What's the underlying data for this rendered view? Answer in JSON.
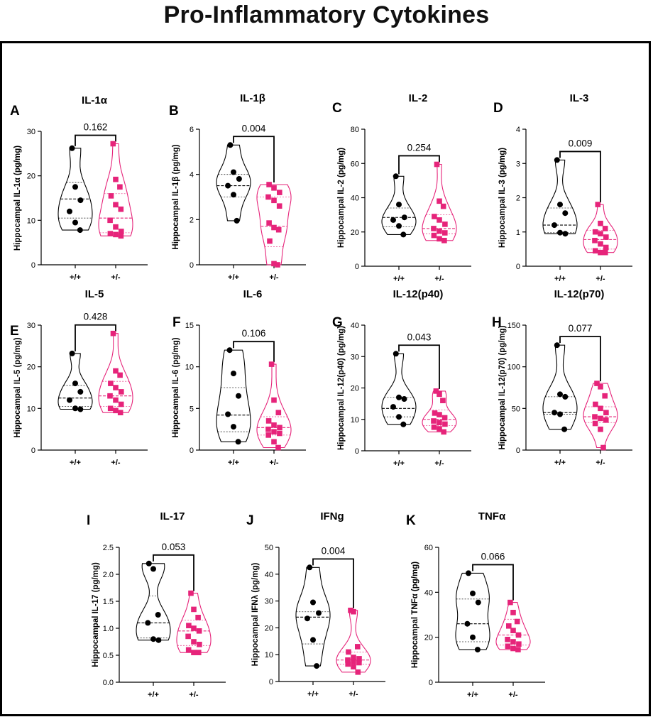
{
  "title": "Pro-Inflammatory Cytokines",
  "colors": {
    "wt": "#000000",
    "het": "#e6247a",
    "axis": "#000000"
  },
  "chart_data": [
    {
      "type": "violin",
      "letter": "A",
      "title": "IL-1α",
      "ylabel": "Hippocampal IL-1α (pg/mg)",
      "ylim": [
        0,
        30
      ],
      "yticks": [
        "0",
        "10",
        "20",
        "30"
      ],
      "categories": [
        "+/+",
        "+/-"
      ],
      "p_value": "0.162",
      "series": [
        {
          "name": "+/+",
          "values": [
            26.2,
            17.5,
            14.5,
            12.0,
            9.5,
            7.8
          ],
          "median": 14.8,
          "q1": 10.5,
          "q3": 18.5
        },
        {
          "name": "+/-",
          "values": [
            27.2,
            19.2,
            17.5,
            15.5,
            13.5,
            12.5,
            10.0,
            8.5,
            7.5,
            7.0,
            6.8,
            6.5
          ],
          "median": 10.5,
          "q1": 7.2,
          "q3": 16.0
        }
      ]
    },
    {
      "type": "violin",
      "letter": "B",
      "title": "IL-1β",
      "ylabel": "Hippocampal IL-1β (pg/mg)",
      "ylim": [
        0,
        6
      ],
      "yticks": [
        "0",
        "2",
        "4",
        "6"
      ],
      "categories": [
        "+/+",
        "+/-"
      ],
      "p_value": "0.004",
      "series": [
        {
          "name": "+/+",
          "values": [
            5.3,
            4.1,
            3.8,
            3.5,
            3.1,
            1.95
          ],
          "median": 3.5,
          "q1": 3.0,
          "q3": 4.0
        },
        {
          "name": "+/-",
          "values": [
            3.55,
            3.4,
            3.2,
            3.0,
            2.85,
            2.6,
            1.85,
            1.65,
            1.55,
            1.05,
            0.05,
            0.0
          ],
          "median": 1.7,
          "q1": 0.8,
          "q3": 3.0
        }
      ]
    },
    {
      "type": "violin",
      "letter": "C",
      "title": "IL-2",
      "ylabel": "Hippocampal IL-2 (pg/mg)",
      "ylim": [
        0,
        80
      ],
      "yticks": [
        "0",
        "20",
        "40",
        "60",
        "80"
      ],
      "categories": [
        "+/+",
        "+/-"
      ],
      "p_value": "0.254",
      "series": [
        {
          "name": "+/+",
          "values": [
            52.5,
            36.0,
            28.5,
            27.0,
            23.5,
            18.5
          ],
          "median": 28.5,
          "q1": 23.0,
          "q3": 34.0
        },
        {
          "name": "+/-",
          "values": [
            59.5,
            38.0,
            35.0,
            29.0,
            27.0,
            24.5,
            22.0,
            20.5,
            19.5,
            18.0,
            16.0,
            15.0
          ],
          "median": 22.0,
          "q1": 19.0,
          "q3": 30.0
        }
      ]
    },
    {
      "type": "violin",
      "letter": "D",
      "title": "IL-3",
      "ylabel": "Hippocampal IL-3 (pg/mg)",
      "ylim": [
        0,
        4
      ],
      "yticks": [
        "0",
        "1",
        "2",
        "3",
        "4"
      ],
      "categories": [
        "+/+",
        "+/-"
      ],
      "p_value": "0.009",
      "series": [
        {
          "name": "+/+",
          "values": [
            3.1,
            1.8,
            1.55,
            1.2,
            0.98,
            0.95
          ],
          "median": 1.2,
          "q1": 0.98,
          "q3": 1.7
        },
        {
          "name": "+/-",
          "values": [
            1.8,
            1.25,
            1.1,
            1.0,
            0.95,
            0.85,
            0.75,
            0.65,
            0.55,
            0.45,
            0.4,
            0.4
          ],
          "median": 0.78,
          "q1": 0.5,
          "q3": 1.05
        }
      ]
    },
    {
      "type": "violin",
      "letter": "E",
      "title": "IL-5",
      "ylabel": "Hippocampal IL-5 (pg/mg)",
      "ylim": [
        0,
        30
      ],
      "yticks": [
        "0",
        "10",
        "20",
        "30"
      ],
      "categories": [
        "+/+",
        "+/-"
      ],
      "p_value": "0.428",
      "series": [
        {
          "name": "+/+",
          "values": [
            23.2,
            16.0,
            14.0,
            12.0,
            10.0,
            9.8
          ],
          "median": 12.5,
          "q1": 10.5,
          "q3": 15.5
        },
        {
          "name": "+/-",
          "values": [
            28.0,
            19.0,
            18.0,
            16.0,
            15.0,
            14.0,
            13.0,
            12.0,
            11.0,
            10.0,
            9.5,
            9.0
          ],
          "median": 13.0,
          "q1": 10.5,
          "q3": 16.5
        }
      ]
    },
    {
      "type": "violin",
      "letter": "F",
      "title": "IL-6",
      "ylabel": "Hippocampal IL-6 (pg/mg)",
      "ylim": [
        0,
        15
      ],
      "yticks": [
        "0",
        "5",
        "10",
        "15"
      ],
      "categories": [
        "+/+",
        "+/-"
      ],
      "p_value": "0.106",
      "series": [
        {
          "name": "+/+",
          "values": [
            12.0,
            9.2,
            6.5,
            4.3,
            2.8,
            1.0
          ],
          "median": 4.2,
          "q1": 2.2,
          "q3": 7.5
        },
        {
          "name": "+/-",
          "values": [
            10.3,
            6.0,
            4.5,
            3.5,
            3.0,
            2.7,
            2.5,
            2.2,
            2.0,
            1.8,
            1.0,
            0.3
          ],
          "median": 2.7,
          "q1": 1.8,
          "q3": 4.0
        }
      ]
    },
    {
      "type": "violin",
      "letter": "G",
      "title": "IL-12(p40)",
      "ylabel": "Hippocampal IL-12(p40) (pg/mg)",
      "ylim": [
        0,
        40
      ],
      "yticks": [
        "0",
        "10",
        "20",
        "30",
        "40"
      ],
      "categories": [
        "+/+",
        "+/-"
      ],
      "p_value": "0.043",
      "series": [
        {
          "name": "+/+",
          "values": [
            30.9,
            17.0,
            16.5,
            14.0,
            10.8,
            8.4
          ],
          "median": 13.5,
          "q1": 10.8,
          "q3": 17.0
        },
        {
          "name": "+/-",
          "values": [
            19.0,
            18.0,
            16.0,
            12.0,
            11.5,
            10.5,
            9.5,
            9.0,
            8.5,
            7.5,
            7.0,
            6.0
          ],
          "median": 10.0,
          "q1": 8.0,
          "q3": 13.0
        }
      ]
    },
    {
      "type": "violin",
      "letter": "H",
      "title": "IL-12(p70)",
      "ylabel": "Hippocampal IL-12(p70) (pg/mg)",
      "ylim": [
        0,
        150
      ],
      "yticks": [
        "0",
        "50",
        "100",
        "150"
      ],
      "categories": [
        "+/+",
        "+/-"
      ],
      "p_value": "0.077",
      "series": [
        {
          "name": "+/+",
          "values": [
            126.0,
            67.0,
            64.0,
            45.0,
            43.0,
            25.0
          ],
          "median": 45.0,
          "q1": 43.0,
          "q3": 64.0
        },
        {
          "name": "+/-",
          "values": [
            80.0,
            76.0,
            65.0,
            55.0,
            50.0,
            45.0,
            40.0,
            38.0,
            36.0,
            32.0,
            25.0,
            3.0
          ],
          "median": 40.0,
          "q1": 33.0,
          "q3": 52.0
        }
      ]
    },
    {
      "type": "violin",
      "letter": "I",
      "title": "IL-17",
      "ylabel": "Hippocampal IL-17 (pg/mg)",
      "ylim": [
        0,
        2.5
      ],
      "yticks": [
        "0.0",
        "0.5",
        "1.0",
        "1.5",
        "2.0",
        "2.5"
      ],
      "categories": [
        "+/+",
        "+/-"
      ],
      "p_value": "0.053",
      "series": [
        {
          "name": "+/+",
          "values": [
            2.2,
            2.1,
            1.25,
            1.1,
            0.8,
            0.78
          ],
          "median": 1.1,
          "q1": 0.82,
          "q3": 1.6
        },
        {
          "name": "+/-",
          "values": [
            1.65,
            1.35,
            1.2,
            1.05,
            1.0,
            0.95,
            0.85,
            0.75,
            0.7,
            0.6,
            0.55,
            0.55
          ],
          "median": 0.95,
          "q1": 0.68,
          "q3": 1.15
        }
      ]
    },
    {
      "type": "violin",
      "letter": "J",
      "title": "IFNg",
      "ylabel": "Hippocampal IFNλ (pg/mg)",
      "ylim": [
        0,
        50
      ],
      "yticks": [
        "0",
        "10",
        "20",
        "30",
        "40",
        "50"
      ],
      "categories": [
        "+/+",
        "+/-"
      ],
      "p_value": "0.004",
      "series": [
        {
          "name": "+/+",
          "values": [
            42.5,
            29.5,
            25.5,
            23.5,
            15.5,
            5.8
          ],
          "median": 24.0,
          "q1": 14.0,
          "q3": 26.0
        },
        {
          "name": "+/-",
          "values": [
            26.5,
            26.0,
            13.0,
            11.0,
            9.0,
            8.5,
            8.0,
            7.5,
            7.0,
            6.5,
            5.5,
            3.5
          ],
          "median": 8.0,
          "q1": 6.5,
          "q3": 11.0
        }
      ]
    },
    {
      "type": "violin",
      "letter": "K",
      "title": "TNFα",
      "ylabel": "Hippocampal TNFα (pg/mg)",
      "ylim": [
        0,
        60
      ],
      "yticks": [
        "0",
        "20",
        "40",
        "60"
      ],
      "categories": [
        "+/+",
        "+/-"
      ],
      "p_value": "0.066",
      "series": [
        {
          "name": "+/+",
          "values": [
            48.5,
            39.5,
            35.5,
            26.0,
            20.0,
            14.5
          ],
          "median": 26.0,
          "q1": 18.0,
          "q3": 37.0
        },
        {
          "name": "+/-",
          "values": [
            35.5,
            31.0,
            27.0,
            25.0,
            23.0,
            21.0,
            19.0,
            18.0,
            17.0,
            16.0,
            15.0,
            14.5
          ],
          "median": 21.0,
          "q1": 16.5,
          "q3": 28.0
        }
      ]
    }
  ]
}
